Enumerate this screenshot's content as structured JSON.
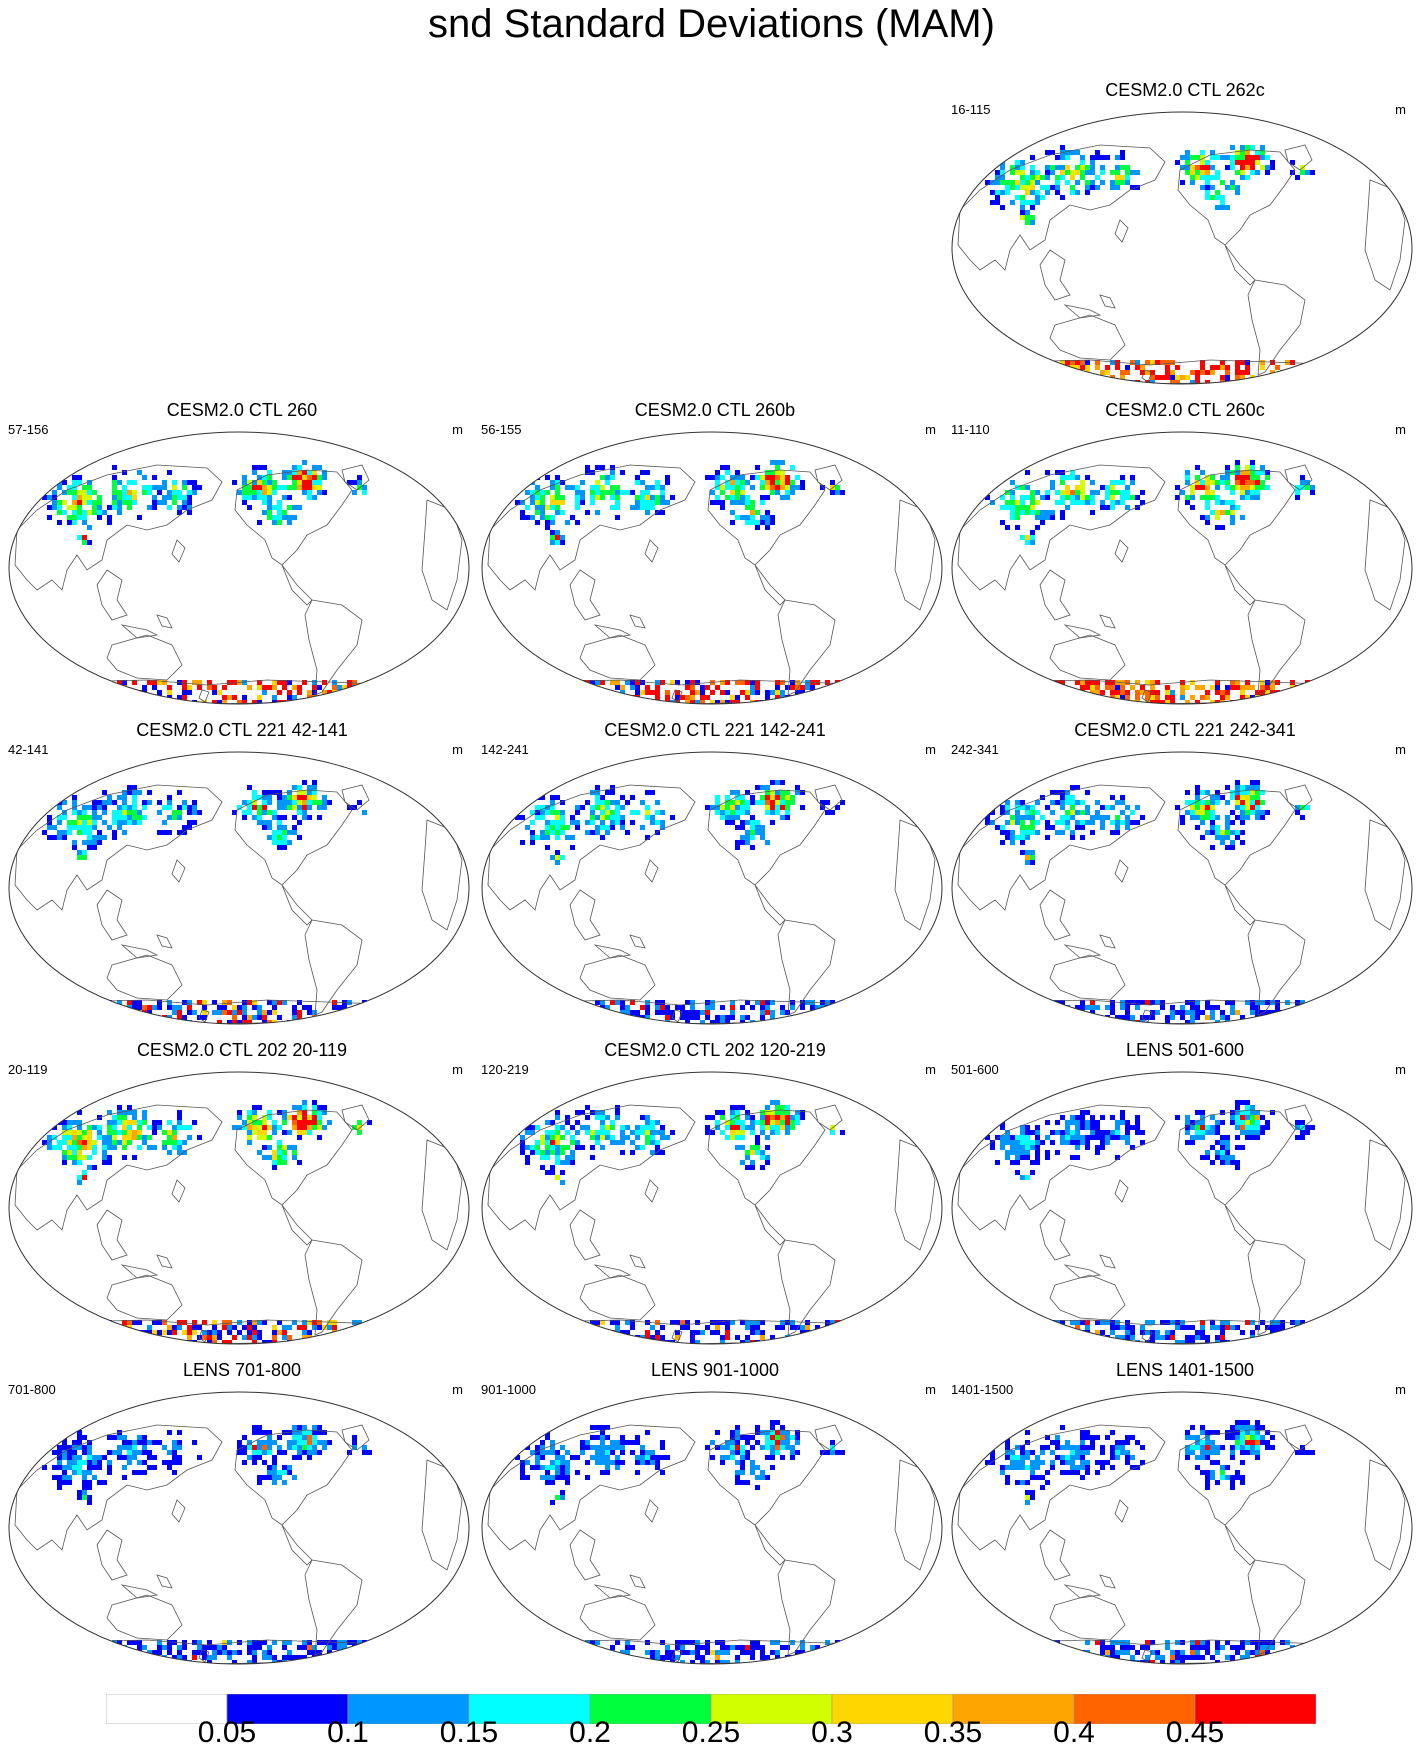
{
  "title": "snd Standard Deviations (MAM)",
  "panels": [
    {
      "title": "CESM2.0 CTL 262c",
      "range": "16-115",
      "unit": "m",
      "intensity": 0.85,
      "ant": 0.9
    },
    {
      "title": "CESM2.0 CTL 260",
      "range": "57-156",
      "unit": "m",
      "intensity": 0.8,
      "ant": 0.75
    },
    {
      "title": "CESM2.0 CTL 260b",
      "range": "56-155",
      "unit": "m",
      "intensity": 0.8,
      "ant": 0.7
    },
    {
      "title": "CESM2.0 CTL 260c",
      "range": "11-110",
      "unit": "m",
      "intensity": 0.85,
      "ant": 0.9
    },
    {
      "title": "CESM2.0 CTL 221 42-141",
      "range": "42-141",
      "unit": "m",
      "intensity": 0.6,
      "ant": 0.3
    },
    {
      "title": "CESM2.0 CTL 221 142-241",
      "range": "142-241",
      "unit": "m",
      "intensity": 0.6,
      "ant": 0.1
    },
    {
      "title": "CESM2.0 CTL 221 242-341",
      "range": "242-341",
      "unit": "m",
      "intensity": 0.6,
      "ant": 0.1
    },
    {
      "title": "CESM2.0 CTL 202 20-119",
      "range": "20-119",
      "unit": "m",
      "intensity": 0.95,
      "ant": 0.55
    },
    {
      "title": "CESM2.0 CTL 202 120-219",
      "range": "120-219",
      "unit": "m",
      "intensity": 0.7,
      "ant": 0.1
    },
    {
      "title": "LENS 501-600",
      "range": "501-600",
      "unit": "m",
      "intensity": 0.35,
      "ant": 0.05
    },
    {
      "title": "LENS 701-800",
      "range": "701-800",
      "unit": "m",
      "intensity": 0.35,
      "ant": 0.05
    },
    {
      "title": "LENS 901-1000",
      "range": "901-1000",
      "unit": "m",
      "intensity": 0.35,
      "ant": 0.05
    },
    {
      "title": "LENS 1401-1500",
      "range": "1401-1500",
      "unit": "m",
      "intensity": 0.35,
      "ant": 0.05
    }
  ],
  "colorbar": {
    "colors": [
      "#ffffff",
      "#0000ff",
      "#0096ff",
      "#00ffff",
      "#00ff3c",
      "#d2ff00",
      "#ffd700",
      "#ffa500",
      "#ff6400",
      "#ff0000"
    ],
    "labels": [
      "0.05",
      "0.1",
      "0.15",
      "0.2",
      "0.25",
      "0.3",
      "0.35",
      "0.4",
      "0.45"
    ]
  }
}
